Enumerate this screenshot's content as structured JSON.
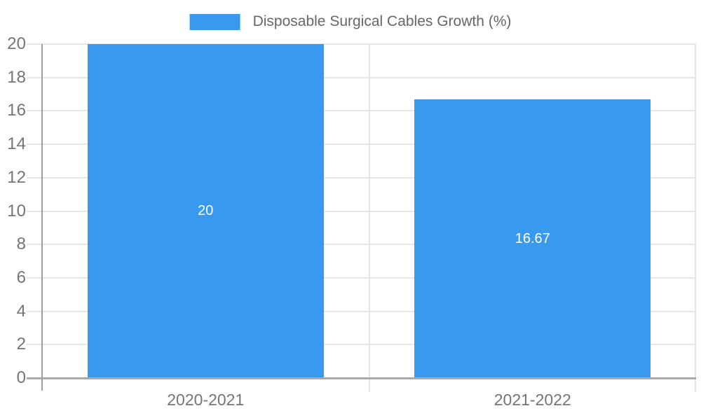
{
  "legend": {
    "label": "Disposable Surgical Cables Growth (%)"
  },
  "chart_data": {
    "type": "bar",
    "title": "Disposable Surgical Cables Growth (%)",
    "categories": [
      "2020-2021",
      "2021-2022"
    ],
    "series": [
      {
        "name": "Disposable Surgical Cables Growth (%)",
        "values": [
          20,
          16.67
        ],
        "labels": [
          "20",
          "16.67"
        ]
      }
    ],
    "xlabel": "",
    "ylabel": "",
    "ylim": [
      0,
      20
    ],
    "yticks": [
      0,
      2,
      4,
      6,
      8,
      10,
      12,
      14,
      16,
      18,
      20
    ],
    "grid": true,
    "legend_position": "top-center"
  },
  "colors": {
    "bar": "#3999EE",
    "gridline": "#E6E6E6",
    "axis_line": "#9E9E9E",
    "baseline": "#AAAAAA",
    "tick_label_text": "#757575",
    "legend_text": "#666666",
    "bar_value_text": "#FFFFFF",
    "background": "#FFFFFF"
  }
}
